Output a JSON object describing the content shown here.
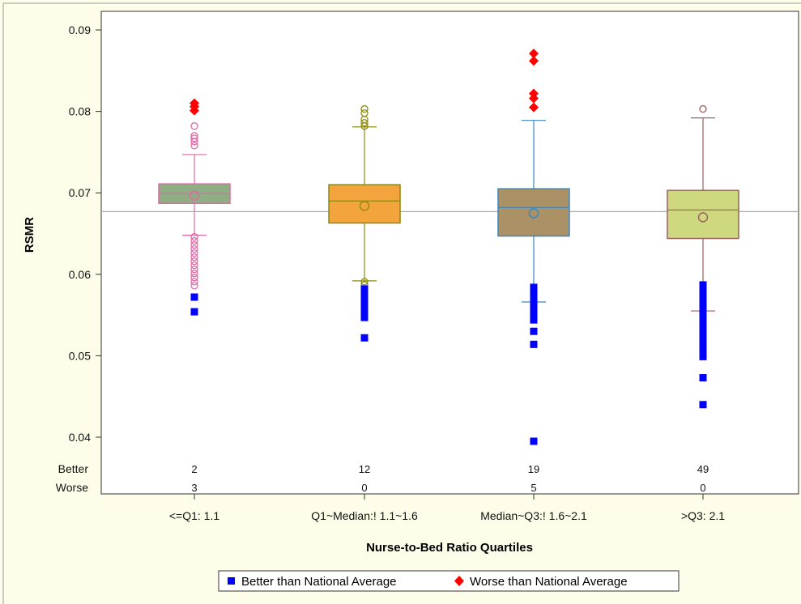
{
  "chart_data": {
    "type": "box",
    "xlabel": "Nurse-to-Bed Ratio Quartiles",
    "ylabel": "RSMR",
    "ylim": [
      0.038,
      0.0915
    ],
    "yticks": [
      0.04,
      0.05,
      0.06,
      0.07,
      0.08,
      0.09
    ],
    "ytick_labels": [
      "0.04",
      "0.05",
      "0.06",
      "0.07",
      "0.08",
      "0.09"
    ],
    "reference_line": 0.0677,
    "count_row_labels": [
      "Better",
      "Worse"
    ],
    "categories": [
      "<=Q1: 1.1",
      "Q1~Median:! 1.1~1.6",
      "Median~Q3:! 1.6~2.1",
      ">Q3: 2.1"
    ],
    "boxes": [
      {
        "category": "<=Q1: 1.1",
        "q1": 0.0687,
        "median": 0.0699,
        "q3": 0.0711,
        "mean": 0.0697,
        "whisker_low": 0.0648,
        "whisker_high": 0.0747,
        "fill": "#8fae84",
        "edge": "#e06aa4",
        "better": "2",
        "worse": "3",
        "outliers": [
          0.0758,
          0.0763,
          0.0767,
          0.077,
          0.0782,
          0.0646,
          0.0641,
          0.0636,
          0.0631,
          0.0626,
          0.0621,
          0.0616,
          0.0611,
          0.0606,
          0.0601,
          0.0596,
          0.0591,
          0.0586
        ],
        "better_points": [
          0.0572,
          0.0554
        ],
        "worse_points": [
          0.081,
          0.0806,
          0.0801
        ]
      },
      {
        "category": "Q1~Median:! 1.1~1.6",
        "q1": 0.0663,
        "median": 0.069,
        "q3": 0.071,
        "mean": 0.0684,
        "whisker_low": 0.0592,
        "whisker_high": 0.0781,
        "fill": "#f3a43c",
        "edge": "#8c8a10",
        "better": "12",
        "worse": "0",
        "outliers": [
          0.0803,
          0.0798,
          0.079,
          0.0786,
          0.0782,
          0.0591,
          0.0587
        ],
        "better_points": [
          0.0582,
          0.0577,
          0.0572,
          0.0567,
          0.0562,
          0.0557,
          0.0552,
          0.0547,
          0.0522
        ],
        "worse_points": []
      },
      {
        "category": "Median~Q3:! 1.6~2.1",
        "q1": 0.0647,
        "median": 0.0682,
        "q3": 0.0705,
        "mean": 0.0675,
        "whisker_low": 0.0566,
        "whisker_high": 0.0789,
        "fill": "#ab9166",
        "edge": "#3a86c0",
        "better": "19",
        "worse": "5",
        "outliers": [],
        "better_points": [
          0.0584,
          0.0579,
          0.0574,
          0.0569,
          0.0564,
          0.0559,
          0.0554,
          0.0549,
          0.0544,
          0.053,
          0.0514,
          0.0395
        ],
        "worse_points": [
          0.0871,
          0.0862,
          0.0822,
          0.0816,
          0.0805
        ]
      },
      {
        "category": ">Q3: 2.1",
        "q1": 0.0644,
        "median": 0.0679,
        "q3": 0.0703,
        "mean": 0.067,
        "whisker_low": 0.0555,
        "whisker_high": 0.0792,
        "fill": "#ced87e",
        "edge": "#9a6060",
        "better": "49",
        "worse": "0",
        "outliers": [
          0.0803
        ],
        "better_points": [
          0.0587,
          0.0582,
          0.0577,
          0.0572,
          0.0567,
          0.0562,
          0.0557,
          0.0552,
          0.0547,
          0.0542,
          0.0537,
          0.0532,
          0.0527,
          0.0522,
          0.0517,
          0.0512,
          0.0507,
          0.0502,
          0.0499,
          0.0473,
          0.044
        ],
        "worse_points": []
      }
    ],
    "legend": {
      "position": "bottom-center",
      "entries": [
        {
          "label": "Better than National Average",
          "marker": "square",
          "color": "#0000ff"
        },
        {
          "label": "Worse than National Average",
          "marker": "diamond",
          "color": "#ff0000"
        }
      ]
    }
  }
}
